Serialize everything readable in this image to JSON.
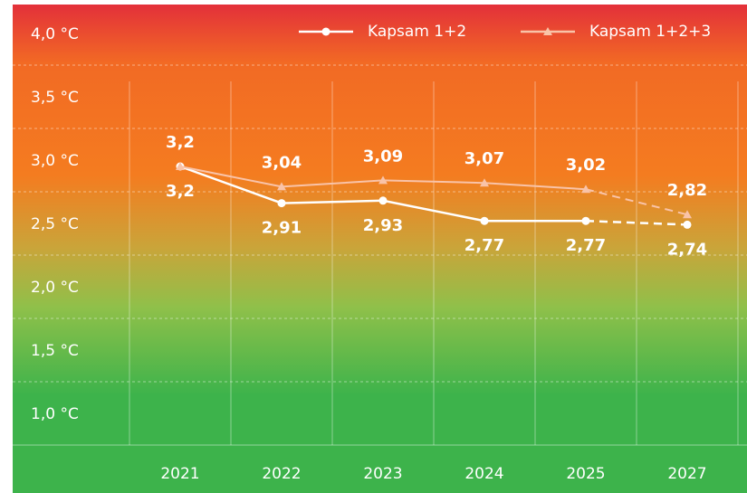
{
  "chart_data": {
    "type": "line",
    "categories": [
      "2021",
      "2022",
      "2023",
      "2024",
      "2025",
      "2027"
    ],
    "forecast": [
      "2027"
    ],
    "series": [
      {
        "name": "Kapsam 1+2",
        "color": "#ffffff",
        "marker": "circle",
        "values": [
          3.2,
          2.91,
          2.93,
          2.77,
          2.77,
          2.74
        ],
        "value_labels": [
          "3,2",
          "2,91",
          "2,93",
          "2,77",
          "2,77",
          "2,74"
        ]
      },
      {
        "name": "Kapsam 1+2+3",
        "color": "#f9c3a8",
        "marker": "triangle",
        "values": [
          3.2,
          3.04,
          3.09,
          3.07,
          3.02,
          2.82
        ],
        "value_labels": [
          "3,2",
          "3,04",
          "3,09",
          "3,07",
          "3,02",
          "2,82"
        ]
      }
    ],
    "ylim": [
      1.0,
      4.45
    ],
    "yticks": [
      {
        "value": 4,
        "label": "4,0 °C"
      },
      {
        "value": 3.5,
        "label": "3,5 °C"
      },
      {
        "value": 3,
        "label": "3,0 °C"
      },
      {
        "value": 2.5,
        "label": "2,5 °C"
      },
      {
        "value": 2,
        "label": "2,0 °C"
      },
      {
        "value": 1.5,
        "label": "1,5 °C"
      },
      {
        "value": 1,
        "label": "1,0 °C"
      }
    ],
    "grid": true,
    "legend": "top-right"
  }
}
